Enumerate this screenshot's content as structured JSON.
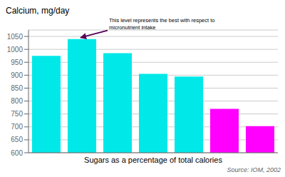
{
  "chart_data": {
    "type": "bar",
    "categories": [
      null,
      null,
      null,
      null,
      null,
      null,
      null
    ],
    "values": [
      975,
      1040,
      985,
      905,
      895,
      770,
      703
    ],
    "colors": [
      "#00E8E8",
      "#00E8E8",
      "#00E8E8",
      "#00E8E8",
      "#00E8E8",
      "#FF00FF",
      "#FF00FF"
    ],
    "ylabel": "Calcium, mg/day",
    "xlabel": "Sugars as a percentage of total calories",
    "ylim": [
      600,
      1075
    ],
    "yticks": [
      600,
      650,
      700,
      750,
      800,
      850,
      900,
      950,
      1000,
      1050
    ],
    "grid": true,
    "tick_labels": "y",
    "annotations": [
      {
        "text": "This level represents the best with respect to\nmicronutrient intake",
        "x": 1,
        "color": "#550055"
      }
    ],
    "source": "Source: IOM, 2002"
  }
}
